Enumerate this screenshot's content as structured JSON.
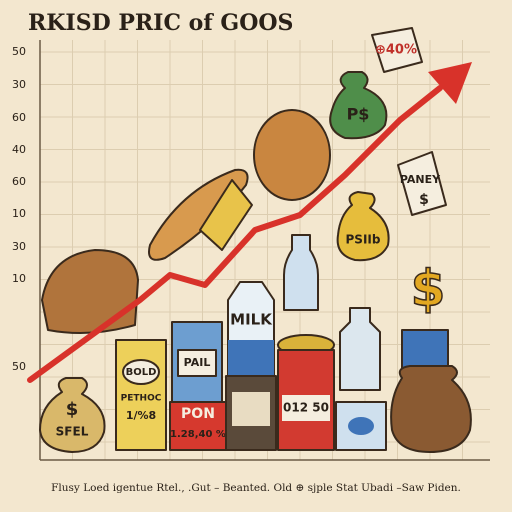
{
  "title": "RKISD PRIC of GOOS",
  "axis_labels": [
    "50",
    "30",
    "60",
    "40",
    "60",
    "10",
    "30",
    "10",
    "50"
  ],
  "caption": "Flusy Loed igentue Rtel., .Gut – Beanted. Old ⊕ sjple Stat Ubadi –Saw Piden.",
  "labels": {
    "tag_top": "⊕40%",
    "green_bag": "P$",
    "tag_right_1": "PANEY",
    "tag_right_2": "$",
    "yellow_bag": "PSIIb",
    "milk": "MILK",
    "box": "PAIL",
    "can_1": "BOLD",
    "can_2": "PETHOC",
    "can_3": "1/%8",
    "red_can_1": "PON",
    "red_can_2": "1.28,40 %",
    "cylinder": "012 50",
    "bag_1": "$",
    "bag_2": "SFEL"
  }
}
